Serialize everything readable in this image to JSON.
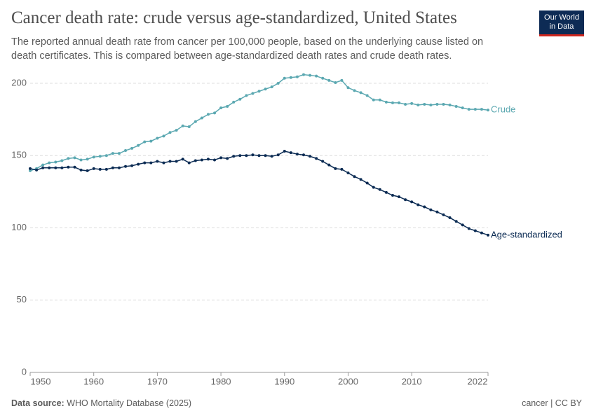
{
  "chart_data": {
    "type": "line",
    "title": "Cancer death rate: crude versus age-standardized, United States",
    "subtitle": "The reported annual death rate from cancer per 100,000 people, based on the underlying cause listed on death certificates. This is compared between age-standardized death rates and crude death rates.",
    "logo": [
      "Our World",
      "in Data"
    ],
    "source_label": "Data source:",
    "source": "WHO Mortality Database (2025)",
    "license": "cancer | CC BY",
    "x": [
      1950,
      1951,
      1952,
      1953,
      1954,
      1955,
      1956,
      1957,
      1958,
      1959,
      1960,
      1961,
      1962,
      1963,
      1964,
      1965,
      1966,
      1967,
      1968,
      1969,
      1970,
      1971,
      1972,
      1973,
      1974,
      1975,
      1976,
      1977,
      1978,
      1979,
      1980,
      1981,
      1982,
      1983,
      1984,
      1985,
      1986,
      1987,
      1988,
      1989,
      1990,
      1991,
      1992,
      1993,
      1994,
      1995,
      1996,
      1997,
      1998,
      1999,
      2000,
      2001,
      2002,
      2003,
      2004,
      2005,
      2006,
      2007,
      2008,
      2009,
      2010,
      2011,
      2012,
      2013,
      2014,
      2015,
      2016,
      2017,
      2018,
      2019,
      2020,
      2021,
      2022
    ],
    "series": [
      {
        "name": "Crude",
        "color": "#5ba8b1",
        "values": [
          139.5,
          141,
          143.5,
          145,
          145.5,
          146.5,
          148,
          148.5,
          147,
          147.5,
          149,
          149.5,
          150,
          151.5,
          151.5,
          153.5,
          155,
          157,
          159.5,
          160,
          162,
          163.5,
          166,
          167.5,
          170.5,
          170,
          173.5,
          176,
          178.5,
          179.5,
          183,
          184,
          187,
          189,
          191.5,
          193,
          194.5,
          196,
          197.5,
          200,
          203.5,
          204,
          204.5,
          206,
          205.5,
          205,
          203.5,
          202,
          200.5,
          202,
          197,
          195,
          193.5,
          191.5,
          188.5,
          188.5,
          187,
          186.5,
          186.5,
          185.5,
          186,
          185,
          185.5,
          185,
          185.5,
          185.5,
          185,
          184,
          183,
          182,
          182,
          182,
          181.5
        ]
      },
      {
        "name": "Age-standardized",
        "color": "#0b2b53",
        "values": [
          141,
          140,
          141.5,
          141.5,
          141.5,
          141.5,
          142,
          142,
          140,
          139.5,
          141,
          140.5,
          140.5,
          141.5,
          141.5,
          142.5,
          143,
          144,
          145,
          145,
          146,
          145,
          146,
          146,
          147.5,
          145,
          146.5,
          147,
          147.5,
          147,
          148.5,
          148,
          149.5,
          150,
          150,
          150.5,
          150,
          150,
          149.5,
          150.5,
          153,
          152,
          151,
          150.5,
          149.5,
          148,
          146,
          143.5,
          141,
          140.5,
          138,
          135.5,
          133.5,
          131,
          128,
          126.5,
          124.5,
          122.5,
          121.5,
          119.5,
          118,
          116,
          114.5,
          112.5,
          111,
          109,
          107,
          104.5,
          102,
          99.5,
          98,
          96.5,
          95
        ]
      }
    ],
    "xlim": [
      1950,
      2022
    ],
    "xticks": [
      1950,
      1960,
      1970,
      1980,
      1990,
      2000,
      2010,
      2022
    ],
    "ylim": [
      0,
      210
    ],
    "yticks": [
      0,
      50,
      100,
      150,
      200
    ],
    "grid": true
  }
}
